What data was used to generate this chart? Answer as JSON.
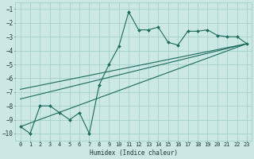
{
  "xlabel": "Humidex (Indice chaleur)",
  "ylabel": "",
  "bg_color": "#cce8e4",
  "grid_color": "#9dccc6",
  "line_color": "#1a6b5a",
  "xlim": [
    -0.5,
    23.5
  ],
  "ylim": [
    -10.5,
    -0.5
  ],
  "yticks": [
    -10,
    -9,
    -8,
    -7,
    -6,
    -5,
    -4,
    -3,
    -2,
    -1
  ],
  "xticks": [
    0,
    1,
    2,
    3,
    4,
    5,
    6,
    7,
    8,
    9,
    10,
    11,
    12,
    13,
    14,
    15,
    16,
    17,
    18,
    19,
    20,
    21,
    22,
    23
  ],
  "main_x": [
    0,
    1,
    2,
    3,
    4,
    5,
    6,
    7,
    8,
    9,
    10,
    11,
    12,
    13,
    14,
    15,
    16,
    17,
    18,
    19,
    20,
    21,
    22,
    23
  ],
  "main_y": [
    -9.5,
    -10.0,
    -8.0,
    -8.0,
    -8.5,
    -9.0,
    -8.5,
    -10.0,
    -6.5,
    -5.0,
    -3.7,
    -1.2,
    -2.5,
    -2.5,
    -2.3,
    -3.4,
    -3.6,
    -2.6,
    -2.6,
    -2.5,
    -2.9,
    -3.0,
    -3.0,
    -3.5
  ],
  "trend_lines": [
    {
      "x": [
        0,
        23
      ],
      "y": [
        -9.5,
        -3.5
      ]
    },
    {
      "x": [
        0,
        23
      ],
      "y": [
        -7.5,
        -3.5
      ]
    },
    {
      "x": [
        0,
        23
      ],
      "y": [
        -6.8,
        -3.5
      ]
    }
  ]
}
